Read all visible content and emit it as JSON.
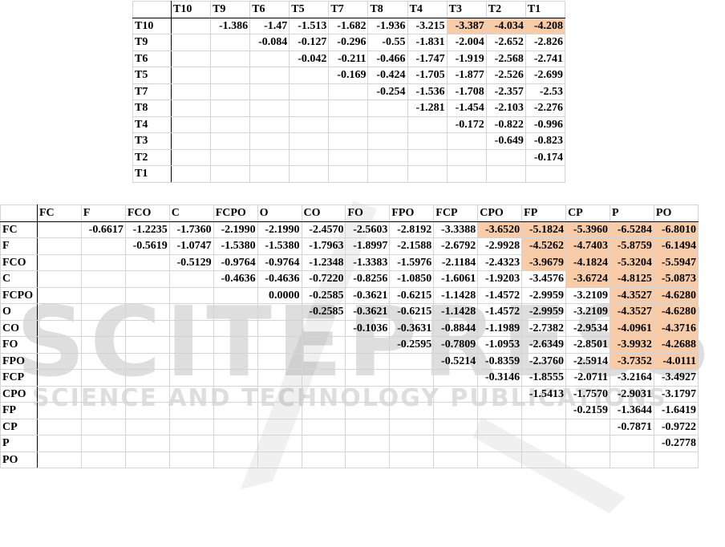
{
  "highlight_color": "#f8cba9",
  "watermark": {
    "main": "SCITEPRESS",
    "sub": "SCIENCE AND TECHNOLOGY PUBLICATIONS"
  },
  "table1": {
    "columns": [
      "T10",
      "T9",
      "T6",
      "T5",
      "T7",
      "T8",
      "T4",
      "T3",
      "T2",
      "T1"
    ],
    "rows": [
      {
        "label": "T10",
        "values": [
          "",
          "-1.386",
          "-1.47",
          "-1.513",
          "-1.682",
          "-1.936",
          "-3.215",
          "-3.387",
          "-4.034",
          "-4.208"
        ],
        "highlight": [
          "T3",
          "T2",
          "T1"
        ]
      },
      {
        "label": "T9",
        "values": [
          "",
          "",
          "-0.084",
          "-0.127",
          "-0.296",
          "-0.55",
          "-1.831",
          "-2.004",
          "-2.652",
          "-2.826"
        ],
        "highlight": []
      },
      {
        "label": "T6",
        "values": [
          "",
          "",
          "",
          "-0.042",
          "-0.211",
          "-0.466",
          "-1.747",
          "-1.919",
          "-2.568",
          "-2.741"
        ],
        "highlight": []
      },
      {
        "label": "T5",
        "values": [
          "",
          "",
          "",
          "",
          "-0.169",
          "-0.424",
          "-1.705",
          "-1.877",
          "-2.526",
          "-2.699"
        ],
        "highlight": []
      },
      {
        "label": "T7",
        "values": [
          "",
          "",
          "",
          "",
          "",
          "-0.254",
          "-1.536",
          "-1.708",
          "-2.357",
          "-2.53"
        ],
        "highlight": []
      },
      {
        "label": "T8",
        "values": [
          "",
          "",
          "",
          "",
          "",
          "",
          "-1.281",
          "-1.454",
          "-2.103",
          "-2.276"
        ],
        "highlight": []
      },
      {
        "label": "T4",
        "values": [
          "",
          "",
          "",
          "",
          "",
          "",
          "",
          "-0.172",
          "-0.822",
          "-0.996"
        ],
        "highlight": []
      },
      {
        "label": "T3",
        "values": [
          "",
          "",
          "",
          "",
          "",
          "",
          "",
          "",
          "-0.649",
          "-0.823"
        ],
        "highlight": []
      },
      {
        "label": "T2",
        "values": [
          "",
          "",
          "",
          "",
          "",
          "",
          "",
          "",
          "",
          "-0.174"
        ],
        "highlight": []
      },
      {
        "label": "T1",
        "values": [
          "",
          "",
          "",
          "",
          "",
          "",
          "",
          "",
          "",
          ""
        ],
        "highlight": []
      }
    ]
  },
  "table2": {
    "columns": [
      "FC",
      "F",
      "FCO",
      "C",
      "FCPO",
      "O",
      "CO",
      "FO",
      "FPO",
      "FCP",
      "CPO",
      "FP",
      "CP",
      "P",
      "PO"
    ],
    "rows": [
      {
        "label": "FC",
        "values": [
          "",
          "-0.6617",
          "-1.2235",
          "-1.7360",
          "-2.1990",
          "-2.1990",
          "-2.4570",
          "-2.5603",
          "-2.8192",
          "-3.3388",
          "-3.6520",
          "-5.1824",
          "-5.3960",
          "-6.5284",
          "-6.8010"
        ],
        "highlight": [
          "CPO",
          "FP",
          "CP",
          "P",
          "PO"
        ]
      },
      {
        "label": "F",
        "values": [
          "",
          "",
          "-0.5619",
          "-1.0747",
          "-1.5380",
          "-1.5380",
          "-1.7963",
          "-1.8997",
          "-2.1588",
          "-2.6792",
          "-2.9928",
          "-4.5262",
          "-4.7403",
          "-5.8759",
          "-6.1494"
        ],
        "highlight": [
          "FP",
          "CP",
          "P",
          "PO"
        ]
      },
      {
        "label": "FCO",
        "values": [
          "",
          "",
          "",
          "-0.5129",
          "-0.9764",
          "-0.9764",
          "-1.2348",
          "-1.3383",
          "-1.5976",
          "-2.1184",
          "-2.4323",
          "-3.9679",
          "-4.1824",
          "-5.3204",
          "-5.5947"
        ],
        "highlight": [
          "FP",
          "CP",
          "P",
          "PO"
        ]
      },
      {
        "label": "C",
        "values": [
          "",
          "",
          "",
          "",
          "-0.4636",
          "-0.4636",
          "-0.7220",
          "-0.8256",
          "-1.0850",
          "-1.6061",
          "-1.9203",
          "-3.4576",
          "-3.6724",
          "-4.8125",
          "-5.0873"
        ],
        "highlight": [
          "CP",
          "P",
          "PO"
        ]
      },
      {
        "label": "FCPO",
        "values": [
          "",
          "",
          "",
          "",
          "",
          "0.0000",
          "-0.2585",
          "-0.3621",
          "-0.6215",
          "-1.1428",
          "-1.4572",
          "-2.9959",
          "-3.2109",
          "-4.3527",
          "-4.6280"
        ],
        "highlight": [
          "P",
          "PO"
        ]
      },
      {
        "label": "O",
        "values": [
          "",
          "",
          "",
          "",
          "",
          "",
          "-0.2585",
          "-0.3621",
          "-0.6215",
          "-1.1428",
          "-1.4572",
          "-2.9959",
          "-3.2109",
          "-4.3527",
          "-4.6280"
        ],
        "highlight": [
          "P",
          "PO"
        ]
      },
      {
        "label": "CO",
        "values": [
          "",
          "",
          "",
          "",
          "",
          "",
          "",
          "-0.1036",
          "-0.3631",
          "-0.8844",
          "-1.1989",
          "-2.7382",
          "-2.9534",
          "-4.0961",
          "-4.3716"
        ],
        "highlight": [
          "P",
          "PO"
        ]
      },
      {
        "label": "FO",
        "values": [
          "",
          "",
          "",
          "",
          "",
          "",
          "",
          "",
          "-0.2595",
          "-0.7809",
          "-1.0953",
          "-2.6349",
          "-2.8501",
          "-3.9932",
          "-4.2688"
        ],
        "highlight": [
          "P",
          "PO"
        ]
      },
      {
        "label": "FPO",
        "values": [
          "",
          "",
          "",
          "",
          "",
          "",
          "",
          "",
          "",
          "-0.5214",
          "-0.8359",
          "-2.3760",
          "-2.5914",
          "-3.7352",
          "-4.0111"
        ],
        "highlight": [
          "P",
          "PO"
        ]
      },
      {
        "label": "FCP",
        "values": [
          "",
          "",
          "",
          "",
          "",
          "",
          "",
          "",
          "",
          "",
          "-0.3146",
          "-1.8555",
          "-2.0711",
          "-3.2164",
          "-3.4927"
        ],
        "highlight": []
      },
      {
        "label": "CPO",
        "values": [
          "",
          "",
          "",
          "",
          "",
          "",
          "",
          "",
          "",
          "",
          "",
          "-1.5413",
          "-1.7570",
          "-2.9031",
          "-3.1797"
        ],
        "highlight": []
      },
      {
        "label": "FP",
        "values": [
          "",
          "",
          "",
          "",
          "",
          "",
          "",
          "",
          "",
          "",
          "",
          "",
          "-0.2159",
          "-1.3644",
          "-1.6419"
        ],
        "highlight": []
      },
      {
        "label": "CP",
        "values": [
          "",
          "",
          "",
          "",
          "",
          "",
          "",
          "",
          "",
          "",
          "",
          "",
          "",
          "-0.7871",
          "-0.9722"
        ],
        "highlight": []
      },
      {
        "label": "P",
        "values": [
          "",
          "",
          "",
          "",
          "",
          "",
          "",
          "",
          "",
          "",
          "",
          "",
          "",
          "",
          "-0.2778"
        ],
        "highlight": []
      },
      {
        "label": "PO",
        "values": [
          "",
          "",
          "",
          "",
          "",
          "",
          "",
          "",
          "",
          "",
          "",
          "",
          "",
          "",
          ""
        ],
        "highlight": []
      }
    ]
  }
}
